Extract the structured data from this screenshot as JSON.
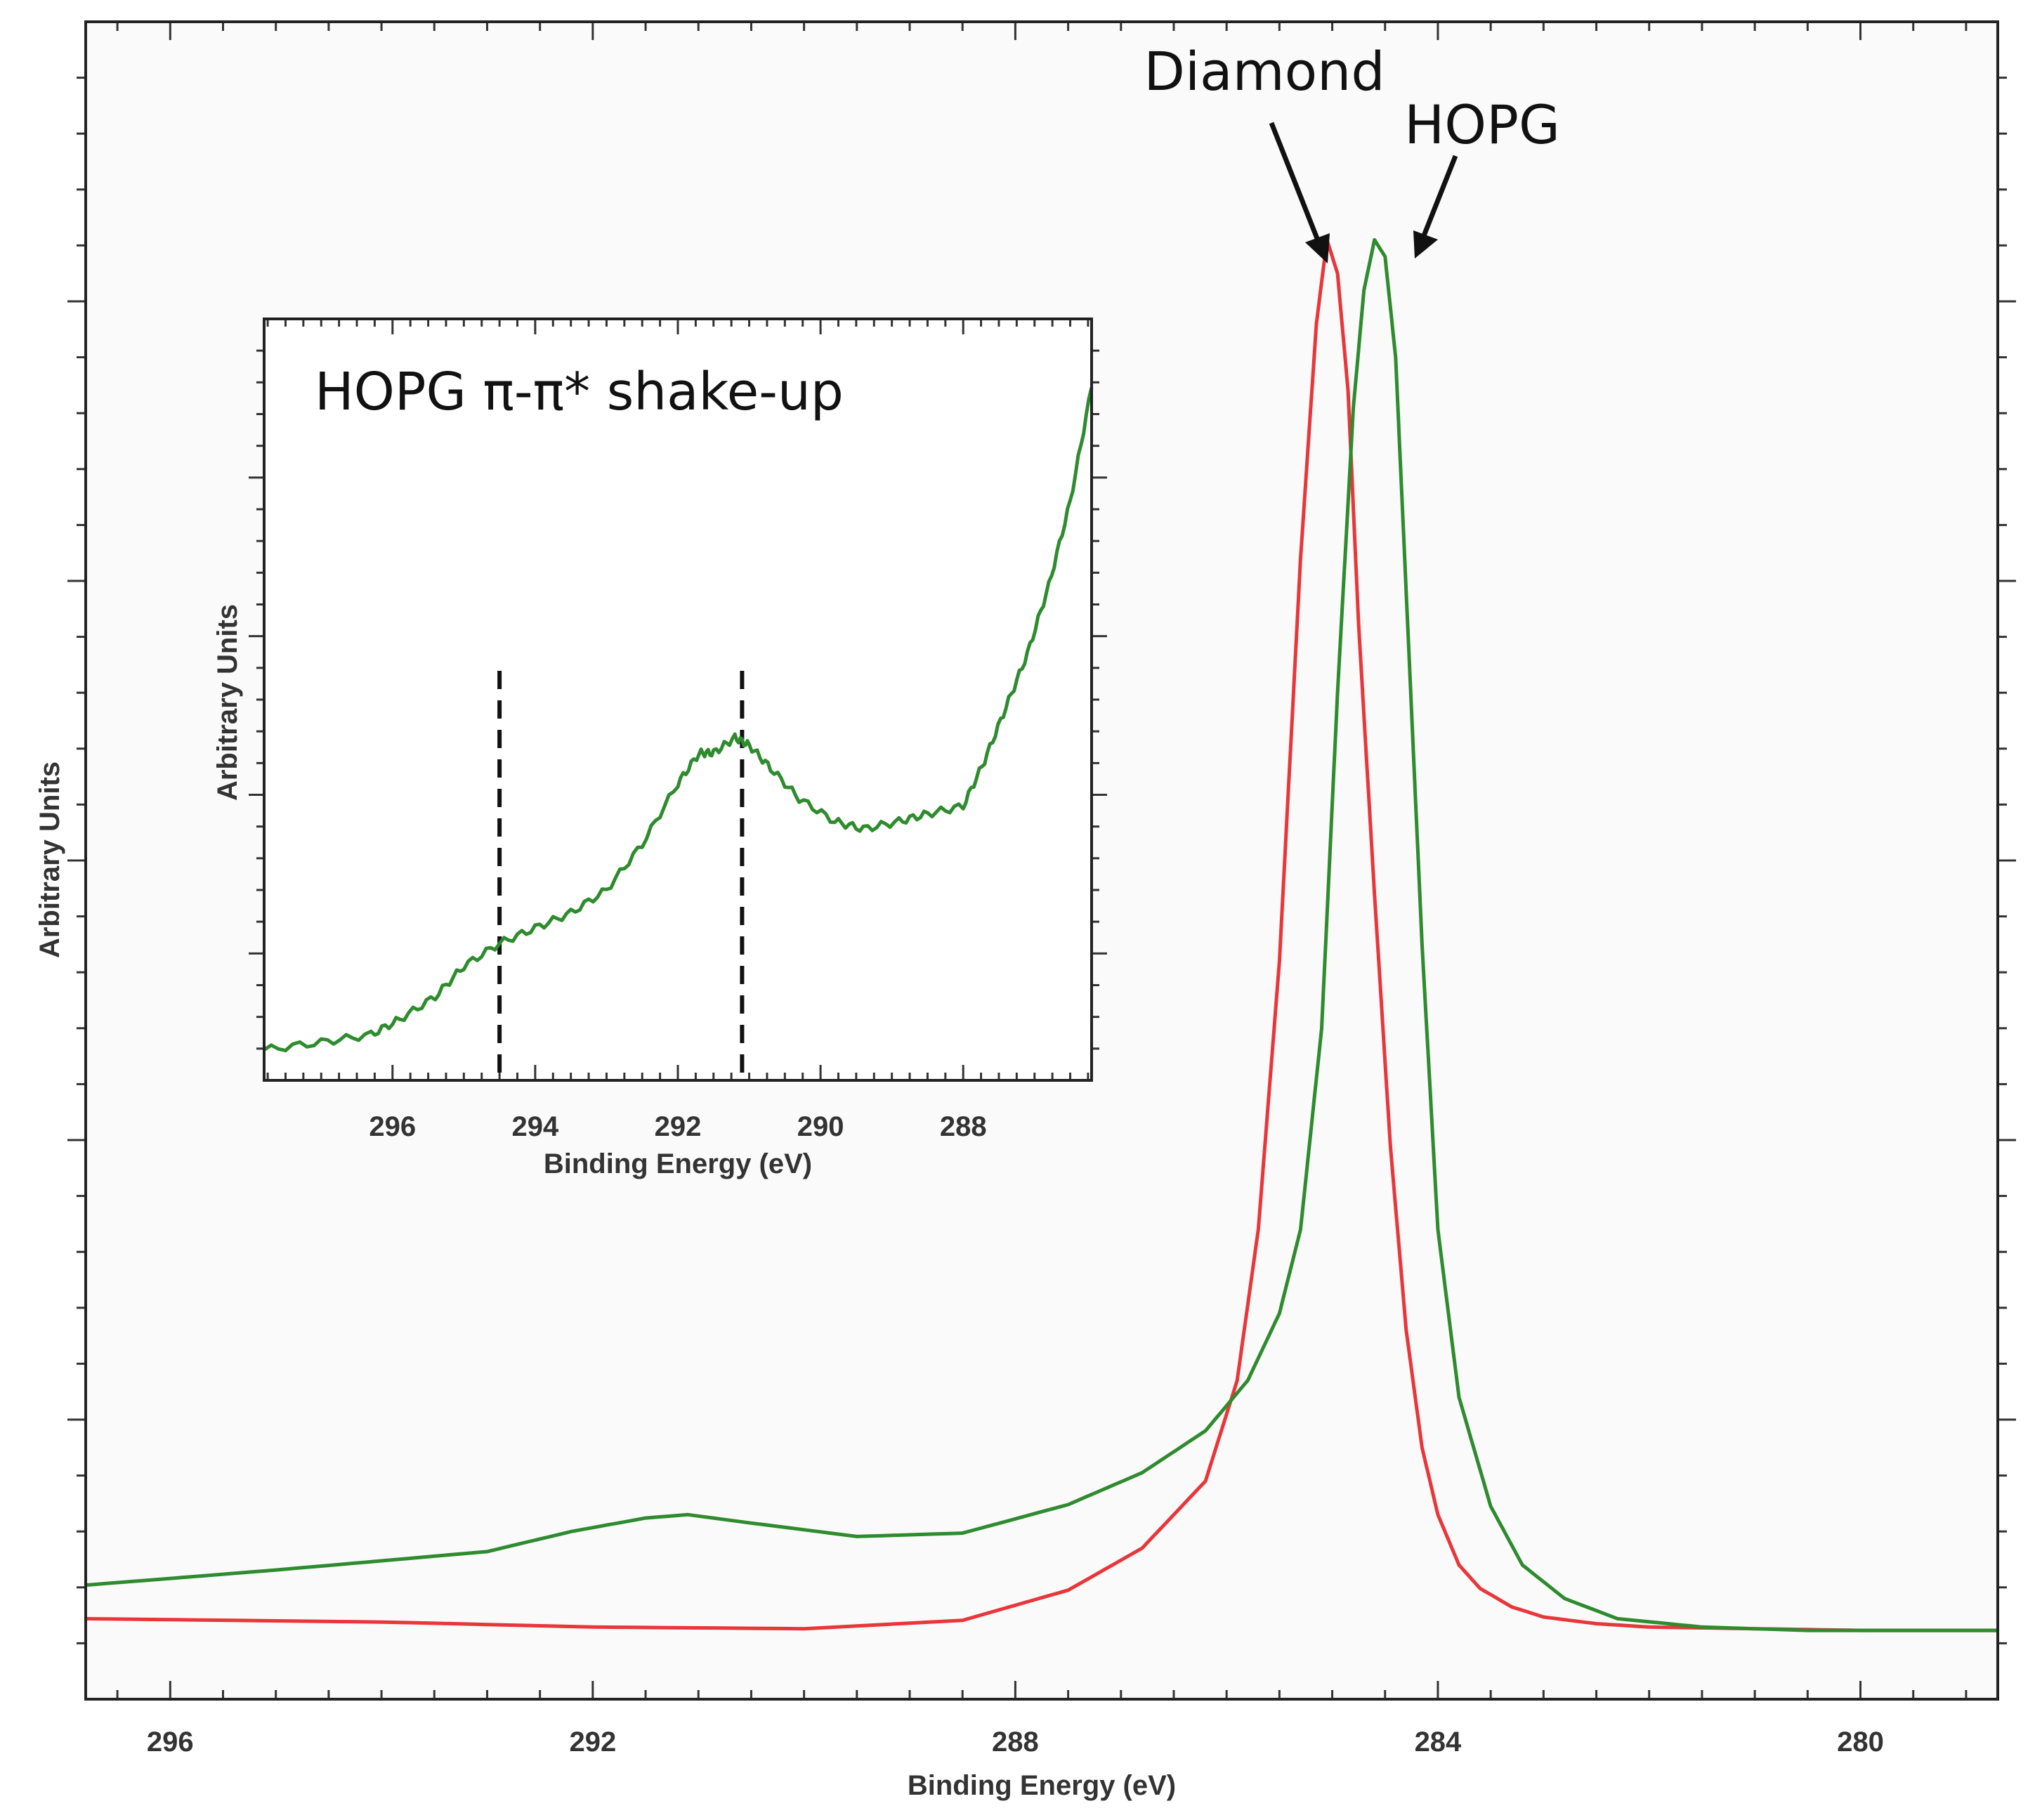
{
  "chart_data": [
    {
      "name": "main",
      "type": "line",
      "xlabel": "Binding Energy (eV)",
      "ylabel": "Arbitrary Units",
      "x_reversed": true,
      "xlim": [
        296.8,
        278.7
      ],
      "ylim": [
        0,
        100
      ],
      "x_ticks": [
        296,
        292,
        288,
        284,
        280
      ],
      "grid": false,
      "series": [
        {
          "name": "Diamond",
          "color": "#e8363a",
          "x": [
            296.8,
            294,
            292,
            290,
            288.5,
            287.5,
            286.8,
            286.2,
            285.9,
            285.7,
            285.5,
            285.3,
            285.15,
            285.05,
            284.95,
            284.85,
            284.75,
            284.6,
            284.45,
            284.3,
            284.15,
            284.0,
            283.8,
            283.6,
            283.3,
            283.0,
            282.5,
            282.0,
            281.0,
            280.0,
            278.7
          ],
          "y": [
            4.8,
            4.6,
            4.3,
            4.2,
            4.7,
            6.5,
            9.0,
            13.0,
            19.0,
            28.0,
            44.0,
            68.0,
            82.0,
            87.0,
            85.0,
            78.0,
            64.0,
            48.0,
            33.0,
            22.0,
            15.0,
            11.0,
            8.0,
            6.6,
            5.5,
            4.9,
            4.5,
            4.3,
            4.2,
            4.1,
            4.1
          ]
        },
        {
          "name": "HOPG",
          "color": "#2e8b2e",
          "x": [
            296.8,
            295,
            293,
            292.2,
            291.5,
            291.1,
            290.5,
            289.5,
            288.5,
            287.5,
            286.8,
            286.2,
            285.8,
            285.5,
            285.3,
            285.1,
            284.95,
            284.8,
            284.7,
            284.6,
            284.5,
            284.4,
            284.3,
            284.15,
            284.0,
            283.8,
            283.5,
            283.2,
            282.8,
            282.3,
            281.5,
            280.5,
            278.7
          ],
          "y": [
            6.8,
            7.7,
            8.8,
            10.0,
            10.8,
            11.0,
            10.5,
            9.7,
            9.9,
            11.6,
            13.5,
            16.0,
            19.0,
            23.0,
            28.0,
            40.0,
            60.0,
            77.0,
            84.0,
            87.0,
            86.0,
            80.0,
            66.0,
            45.0,
            28.0,
            18.0,
            11.5,
            8.0,
            6.0,
            4.8,
            4.3,
            4.1,
            4.1
          ]
        }
      ],
      "annotations": [
        {
          "label": "Diamond",
          "target_x": 285.0
        },
        {
          "label": "HOPG",
          "target_x": 284.5
        }
      ]
    },
    {
      "name": "inset",
      "type": "line",
      "title": "HOPG π-π* shake-up",
      "xlabel": "Binding Energy (eV)",
      "ylabel": "Arbitrary Units",
      "x_reversed": true,
      "xlim": [
        297.8,
        286.2
      ],
      "ylim": [
        0,
        100
      ],
      "x_ticks": [
        296,
        294,
        292,
        290,
        288
      ],
      "grid": false,
      "series": [
        {
          "name": "HOPG",
          "color": "#2e8b2e",
          "x": [
            297.8,
            297.0,
            296.3,
            295.9,
            295.4,
            295.0,
            294.5,
            294.0,
            293.5,
            293.0,
            292.5,
            292.0,
            291.7,
            291.5,
            291.2,
            291.0,
            290.7,
            290.3,
            289.8,
            289.4,
            288.9,
            288.5,
            288.0,
            287.7,
            287.4,
            287.1,
            286.8,
            286.5,
            286.2
          ],
          "y": [
            4,
            5,
            6,
            8,
            11,
            15,
            18,
            20,
            22,
            25,
            31,
            39,
            43,
            43,
            45,
            44,
            41,
            37,
            34,
            33,
            34,
            35,
            36,
            42,
            49,
            56,
            65,
            76,
            91
          ]
        }
      ],
      "reference_lines_x": [
        294.5,
        291.1
      ]
    }
  ]
}
